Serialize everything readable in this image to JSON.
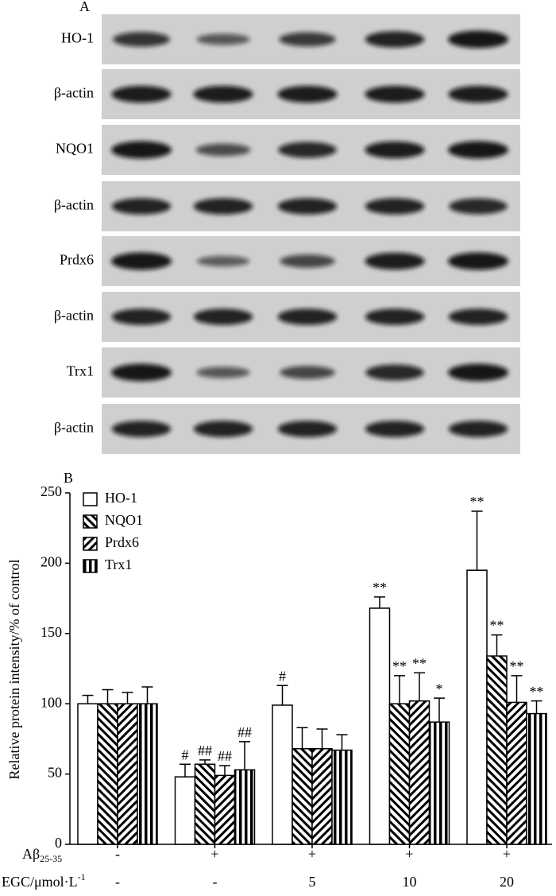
{
  "panel_a": {
    "label": "A",
    "rows": [
      "HO-1",
      "β-actin",
      "NQO1",
      "β-actin",
      "Prdx6",
      "β-actin",
      "Trx1",
      "β-actin"
    ]
  },
  "chart_data": {
    "type": "bar",
    "panel_label": "B",
    "ylabel": "Relative protein intensity/% of control",
    "categories": [
      null,
      null,
      null,
      null,
      null
    ],
    "conditions": [
      {
        "label": {
          "text": "Aβ",
          "sub": "25-35"
        },
        "values": [
          "-",
          "+",
          "+",
          "+",
          "+"
        ]
      },
      {
        "label": {
          "text": "EGC/μmol·L",
          "sup": "-1"
        },
        "values": [
          "-",
          "-",
          "5",
          "10",
          "20"
        ]
      }
    ],
    "series": [
      {
        "name": "HO-1",
        "color": "#ffffff",
        "pattern": "none",
        "values": [
          100,
          48,
          99,
          168,
          195
        ],
        "errors": [
          6,
          9,
          14,
          8,
          42
        ],
        "annotations": [
          null,
          "#",
          "#",
          "**",
          "**"
        ]
      },
      {
        "name": "NQO1",
        "color": "#ffffff",
        "pattern": "backslash",
        "values": [
          100,
          57,
          68,
          100,
          134
        ],
        "errors": [
          10,
          3,
          15,
          20,
          15
        ],
        "annotations": [
          null,
          "##",
          null,
          "**",
          "**"
        ]
      },
      {
        "name": "Prdx6",
        "color": "#ffffff",
        "pattern": "slash",
        "values": [
          100,
          49,
          68,
          102,
          101
        ],
        "errors": [
          8,
          7,
          14,
          20,
          19
        ],
        "annotations": [
          null,
          "##",
          null,
          "**",
          "**"
        ]
      },
      {
        "name": "Trx1",
        "color": "#ffffff",
        "pattern": "vertical",
        "values": [
          100,
          53,
          67,
          87,
          93
        ],
        "errors": [
          12,
          20,
          11,
          17,
          9
        ],
        "annotations": [
          null,
          "##",
          null,
          "*",
          "**"
        ]
      }
    ],
    "ylim": [
      0,
      250
    ],
    "yticks": [
      0,
      50,
      100,
      150,
      200,
      250
    ],
    "legend": "upper left"
  }
}
